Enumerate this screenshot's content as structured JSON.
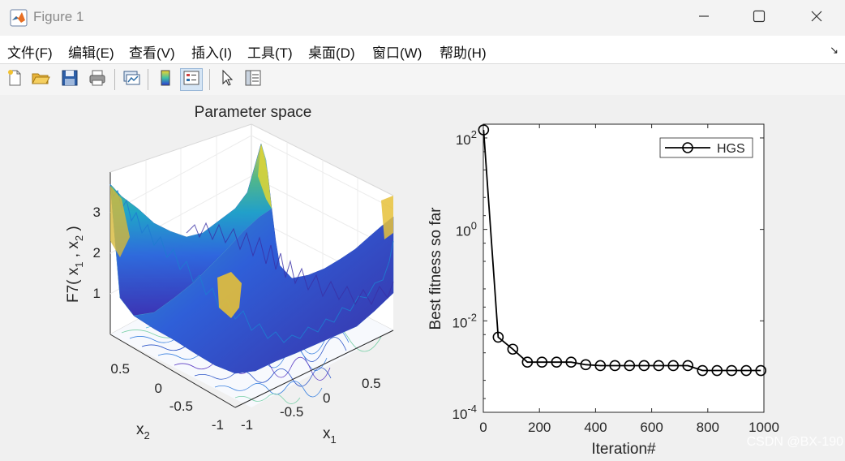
{
  "window": {
    "title": "Figure 1"
  },
  "menu": [
    "文件(F)",
    "编辑(E)",
    "查看(V)",
    "插入(I)",
    "工具(T)",
    "桌面(D)",
    "窗口(W)",
    "帮助(H)"
  ],
  "toolbar": [
    {
      "name": "new-figure",
      "icon": "new-file-icon"
    },
    {
      "name": "open-file",
      "icon": "folder-open-icon"
    },
    {
      "name": "save-figure",
      "icon": "save-icon"
    },
    {
      "name": "print-figure",
      "icon": "printer-icon"
    },
    {
      "name": "link-plot",
      "icon": "link-plot-icon"
    },
    {
      "name": "insert-colorbar",
      "icon": "colorbar-icon"
    },
    {
      "name": "insert-legend",
      "icon": "legend-icon"
    },
    {
      "name": "edit-plot",
      "icon": "cursor-arrow-icon"
    },
    {
      "name": "property-inspector",
      "icon": "property-inspector-icon"
    }
  ],
  "watermark": "CSDN @BX-190",
  "colors": {
    "accent": "#0072bd",
    "surface_low": "#3e2bb0",
    "surface_mid": "#1fa8c9",
    "surface_high": "#f5d42b"
  },
  "chart_data": [
    {
      "type": "surface",
      "title": "Parameter space",
      "xlabel": "x1",
      "ylabel": "x2",
      "zlabel": "F7( x1 , x2 )",
      "xticks": [
        "-1",
        "-0.5",
        "0",
        "0.5"
      ],
      "yticks": [
        "-1",
        "-0.5",
        "0",
        "0.5"
      ],
      "zticks": [
        "1",
        "2",
        "3"
      ],
      "zlim": [
        0,
        4
      ],
      "contour_below": true,
      "colormap": "parula"
    },
    {
      "type": "line",
      "xlabel": "Iteration#",
      "ylabel": "Best fitness so far",
      "yscale": "log",
      "xlim": [
        0,
        1000
      ],
      "ylim": [
        0.0001,
        200
      ],
      "xticks": [
        "0",
        "200",
        "400",
        "600",
        "800",
        "1000"
      ],
      "yticks": [
        {
          "base": "10",
          "exp": "2"
        },
        {
          "base": "10",
          "exp": "0"
        },
        {
          "base": "10",
          "exp": "-2"
        },
        {
          "base": "10",
          "exp": "-4"
        }
      ],
      "legend": "top-right",
      "series": [
        {
          "name": "HGS",
          "x": [
            1,
            53,
            105,
            157,
            209,
            261,
            313,
            365,
            417,
            469,
            521,
            573,
            625,
            677,
            729,
            781,
            833,
            885,
            937,
            989
          ],
          "y": [
            150,
            0.0044,
            0.0024,
            0.00125,
            0.00125,
            0.00125,
            0.00125,
            0.0011,
            0.00105,
            0.00105,
            0.00105,
            0.00105,
            0.00105,
            0.00105,
            0.00105,
            0.00082,
            0.00082,
            0.00082,
            0.00082,
            0.00082
          ]
        }
      ]
    }
  ]
}
